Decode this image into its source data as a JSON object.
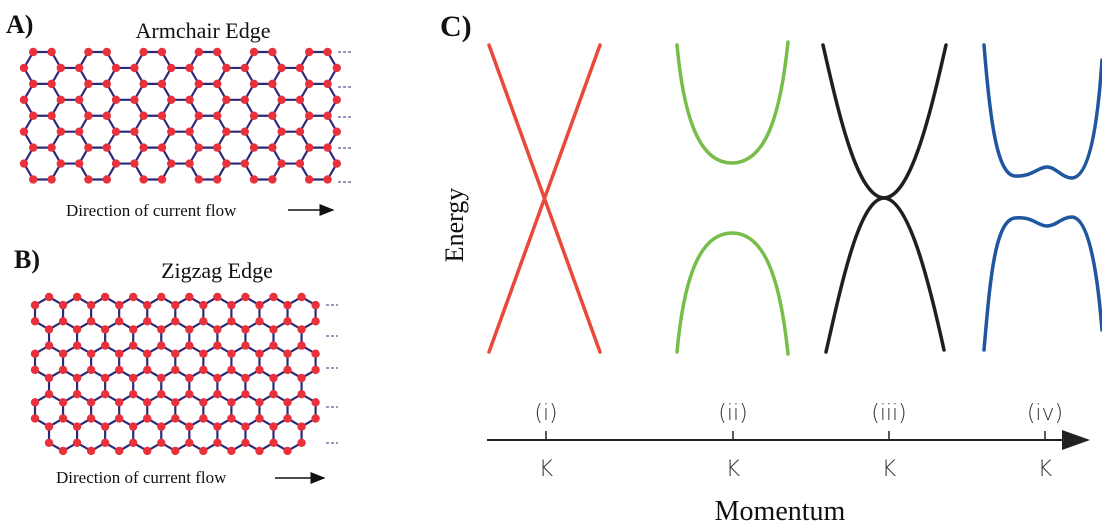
{
  "panels": [
    {
      "label": "A)",
      "title": "Armchair Edge",
      "caption": "Direction of current flow"
    },
    {
      "label": "B)",
      "title": "Zigzag Edge",
      "caption": "Direction of current flow"
    }
  ],
  "bands": {
    "label": "C)",
    "y_axis": "Energy",
    "x_axis": "Momentum",
    "points": [
      {
        "index": "(i)",
        "label": "K"
      },
      {
        "index": "(ii)",
        "label": "K"
      },
      {
        "index": "(iii)",
        "label": "K"
      },
      {
        "index": "(iv)",
        "label": "K"
      }
    ]
  }
}
